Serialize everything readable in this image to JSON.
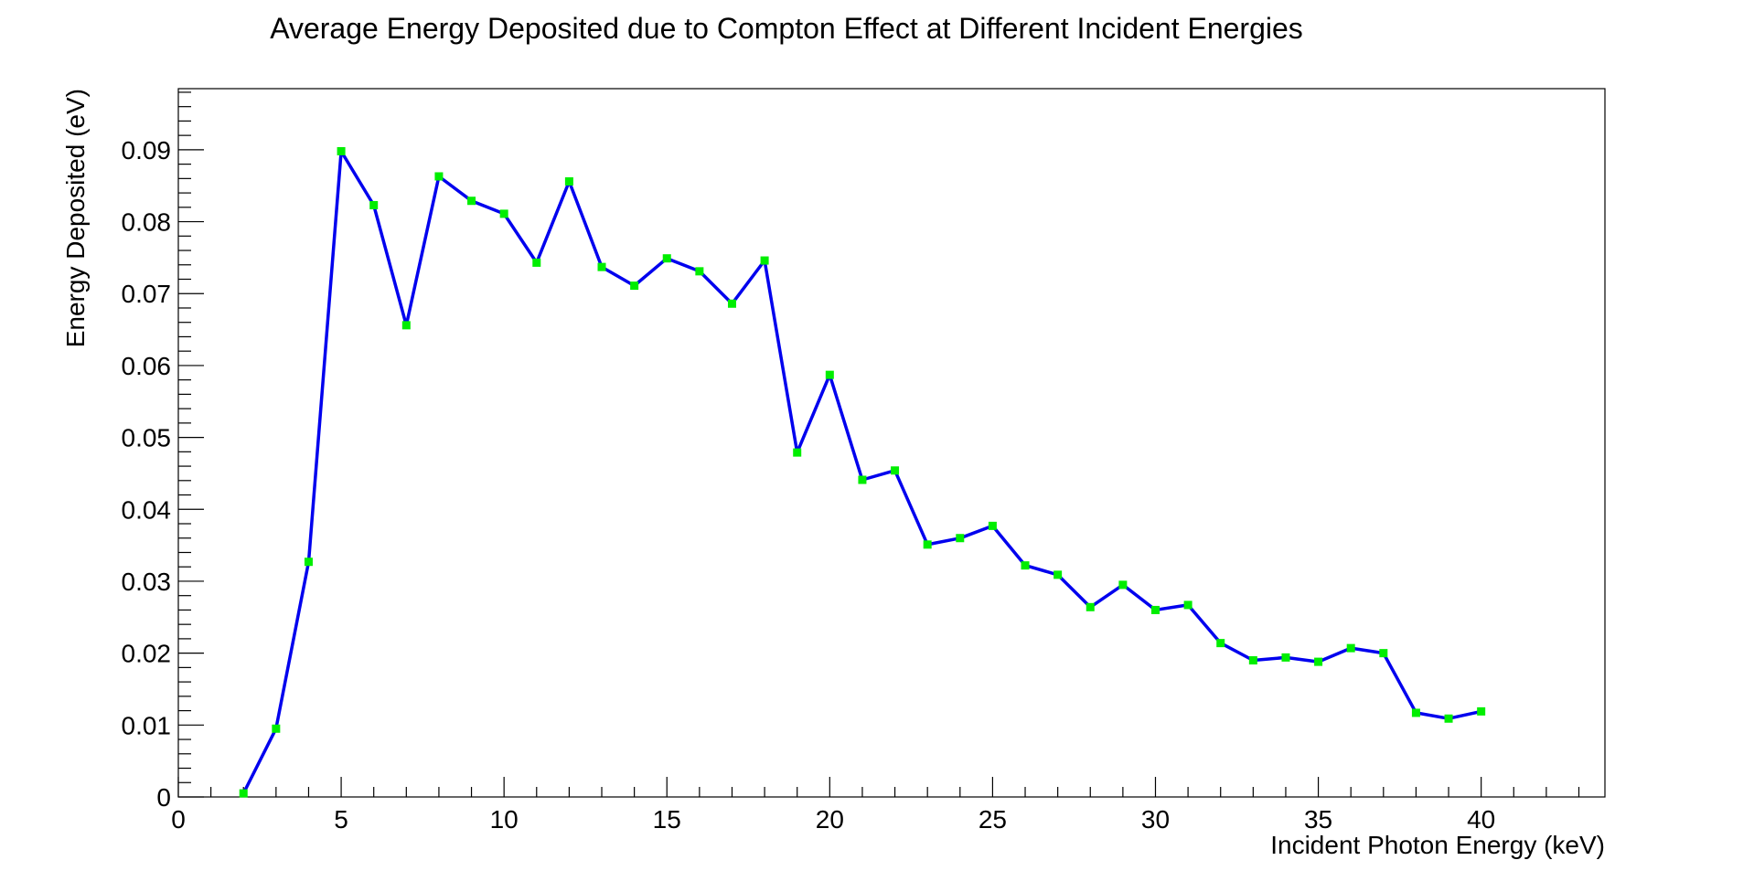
{
  "chart_data": {
    "type": "line",
    "title": "Average Energy Deposited due to Compton Effect at Different Incident Energies",
    "xlabel": "Incident Photon Energy (keV)",
    "ylabel": "Energy Deposited (eV)",
    "xlim": [
      0,
      43.8
    ],
    "ylim": [
      0,
      0.0985
    ],
    "x_ticks": [
      0,
      5,
      10,
      15,
      20,
      25,
      30,
      35,
      40
    ],
    "x_tick_labels": [
      "0",
      "5",
      "10",
      "15",
      "20",
      "25",
      "30",
      "35",
      "40"
    ],
    "y_ticks": [
      0,
      0.01,
      0.02,
      0.03,
      0.04,
      0.05,
      0.06,
      0.07,
      0.08,
      0.09
    ],
    "y_tick_labels": [
      "0",
      "0.01",
      "0.02",
      "0.03",
      "0.04",
      "0.05",
      "0.06",
      "0.07",
      "0.08",
      "0.09"
    ],
    "grid": false,
    "legend": "none",
    "line_color": "#0000ee",
    "marker_color": "#00ee00",
    "x": [
      2,
      3,
      4,
      5,
      6,
      7,
      8,
      9,
      10,
      11,
      12,
      13,
      14,
      15,
      16,
      17,
      18,
      19,
      20,
      21,
      22,
      23,
      24,
      25,
      26,
      27,
      28,
      29,
      30,
      31,
      32,
      33,
      34,
      35,
      36,
      37,
      38,
      39,
      40
    ],
    "y": [
      0.0005,
      0.0095,
      0.0327,
      0.0898,
      0.0823,
      0.0656,
      0.0863,
      0.0829,
      0.0811,
      0.0743,
      0.0856,
      0.0737,
      0.0711,
      0.0749,
      0.0731,
      0.0686,
      0.0746,
      0.0479,
      0.0587,
      0.0441,
      0.0454,
      0.0351,
      0.036,
      0.0377,
      0.0322,
      0.0309,
      0.0264,
      0.0295,
      0.026,
      0.0267,
      0.0214,
      0.019,
      0.0194,
      0.0188,
      0.0207,
      0.02,
      0.0117,
      0.0109,
      0.0119
    ]
  }
}
